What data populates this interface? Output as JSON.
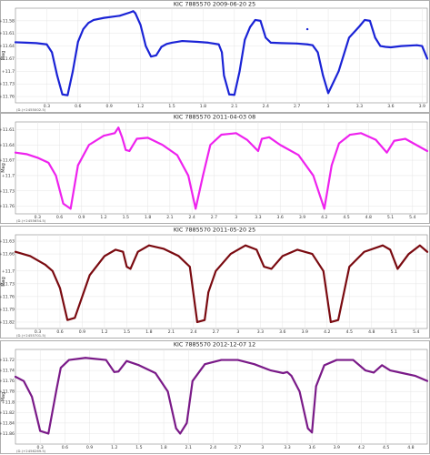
{
  "chart_data": [
    {
      "type": "line",
      "title": "KIC 7885570   2009-06-20   25",
      "ylabel": "Mag",
      "x_offset_note": "(D.)+2455002.5)",
      "color": "#1a23d6",
      "xlim": [
        0,
        3.95
      ],
      "ylim": [
        11.775,
        11.55
      ],
      "xticks": [
        0.3,
        0.6,
        0.9,
        1.2,
        1.5,
        1.8,
        2.1,
        2.4,
        2.7,
        3.0,
        3.3,
        3.6,
        3.9
      ],
      "yticks": [
        11.58,
        11.61,
        11.64,
        11.67,
        11.7,
        11.73,
        11.76
      ],
      "x": [
        0.0,
        0.1,
        0.2,
        0.3,
        0.35,
        0.4,
        0.45,
        0.5,
        0.55,
        0.6,
        0.65,
        0.7,
        0.75,
        0.85,
        1.0,
        1.1,
        1.13,
        1.15,
        1.2,
        1.25,
        1.3,
        1.35,
        1.4,
        1.45,
        1.5,
        1.6,
        1.75,
        1.85,
        1.95,
        1.98,
        2.0,
        2.05,
        2.1,
        2.15,
        2.2,
        2.25,
        2.3,
        2.35,
        2.4,
        2.45,
        2.55,
        2.7,
        2.8,
        2.85,
        2.9,
        2.95,
        3.0,
        3.1,
        3.2,
        3.3,
        3.35,
        3.4,
        3.45,
        3.5,
        3.55,
        3.6,
        3.7,
        3.85,
        3.9,
        3.95
      ],
      "y": [
        11.631,
        11.632,
        11.633,
        11.636,
        11.655,
        11.71,
        11.755,
        11.757,
        11.7,
        11.63,
        11.6,
        11.585,
        11.578,
        11.573,
        11.568,
        11.56,
        11.557,
        11.562,
        11.59,
        11.64,
        11.665,
        11.662,
        11.642,
        11.635,
        11.632,
        11.628,
        11.63,
        11.632,
        11.636,
        11.655,
        11.71,
        11.755,
        11.756,
        11.7,
        11.625,
        11.595,
        11.578,
        11.58,
        11.62,
        11.632,
        11.633,
        11.634,
        11.636,
        11.638,
        11.655,
        11.71,
        11.752,
        11.7,
        11.62,
        11.593,
        11.578,
        11.58,
        11.62,
        11.64,
        11.642,
        11.643,
        11.64,
        11.638,
        11.64,
        11.67
      ],
      "outlier": [
        2.8,
        11.6
      ]
    },
    {
      "type": "line",
      "title": "KIC 7885570   2011-04-03   08",
      "ylabel": "Mag",
      "x_offset_note": "(D.)+2455654.5)",
      "color": "#ee22ee",
      "xlim": [
        0,
        5.6
      ],
      "ylim": [
        11.775,
        11.595
      ],
      "xticks": [
        0.3,
        0.6,
        0.9,
        1.2,
        1.5,
        1.8,
        2.1,
        2.4,
        2.7,
        3.0,
        3.3,
        3.6,
        3.9,
        4.2,
        4.5,
        4.8,
        5.1,
        5.4
      ],
      "yticks": [
        11.61,
        11.64,
        11.67,
        11.7,
        11.73,
        11.76
      ],
      "x": [
        0.0,
        0.15,
        0.3,
        0.45,
        0.55,
        0.65,
        0.75,
        0.85,
        1.0,
        1.2,
        1.35,
        1.4,
        1.45,
        1.5,
        1.55,
        1.65,
        1.8,
        2.0,
        2.2,
        2.35,
        2.45,
        2.55,
        2.65,
        2.8,
        3.0,
        3.15,
        3.3,
        3.35,
        3.45,
        3.6,
        3.85,
        4.05,
        4.2,
        4.3,
        4.4,
        4.55,
        4.7,
        4.9,
        5.05,
        5.15,
        5.3,
        5.45,
        5.6
      ],
      "y": [
        11.655,
        11.658,
        11.665,
        11.675,
        11.7,
        11.755,
        11.765,
        11.68,
        11.64,
        11.622,
        11.617,
        11.606,
        11.625,
        11.65,
        11.652,
        11.628,
        11.626,
        11.64,
        11.66,
        11.7,
        11.765,
        11.7,
        11.64,
        11.62,
        11.617,
        11.63,
        11.652,
        11.628,
        11.625,
        11.64,
        11.66,
        11.7,
        11.765,
        11.68,
        11.637,
        11.62,
        11.617,
        11.63,
        11.655,
        11.632,
        11.628,
        11.64,
        11.652
      ]
    },
    {
      "type": "line",
      "title": "KIC 7885570   2011-05-20   25",
      "ylabel": "Mag",
      "x_offset_note": "(D.)+2455701.5)",
      "color": "#7a0a10",
      "xlim": [
        0,
        5.55
      ],
      "ylim": [
        11.835,
        11.615
      ],
      "xticks": [
        0.3,
        0.6,
        0.9,
        1.2,
        1.5,
        1.8,
        2.1,
        2.4,
        2.7,
        3.0,
        3.3,
        3.6,
        3.9,
        4.2,
        4.5,
        4.8,
        5.1,
        5.4
      ],
      "yticks": [
        11.63,
        11.66,
        11.7,
        11.73,
        11.76,
        11.79,
        11.82
      ],
      "x": [
        0.0,
        0.2,
        0.4,
        0.5,
        0.6,
        0.7,
        0.8,
        1.0,
        1.2,
        1.35,
        1.45,
        1.5,
        1.55,
        1.65,
        1.8,
        2.0,
        2.2,
        2.35,
        2.45,
        2.55,
        2.6,
        2.7,
        2.9,
        3.1,
        3.25,
        3.35,
        3.45,
        3.6,
        3.8,
        4.0,
        4.15,
        4.25,
        4.35,
        4.5,
        4.7,
        4.95,
        5.05,
        5.15,
        5.3,
        5.45,
        5.55
      ],
      "y": [
        11.655,
        11.665,
        11.685,
        11.7,
        11.74,
        11.815,
        11.81,
        11.71,
        11.665,
        11.65,
        11.655,
        11.69,
        11.695,
        11.655,
        11.64,
        11.648,
        11.665,
        11.69,
        11.82,
        11.815,
        11.75,
        11.7,
        11.66,
        11.64,
        11.65,
        11.69,
        11.695,
        11.665,
        11.65,
        11.66,
        11.7,
        11.82,
        11.815,
        11.69,
        11.655,
        11.64,
        11.65,
        11.695,
        11.66,
        11.64,
        11.655
      ]
    },
    {
      "type": "line",
      "title": "KIC 7885570  2012-12-07   12",
      "ylabel": "Mag",
      "x_offset_note": "(D.)+2456269.5)",
      "color": "#7a1a88",
      "xlim": [
        0,
        5.0
      ],
      "ylim": [
        11.88,
        11.7
      ],
      "xticks": [
        0.3,
        0.6,
        0.9,
        1.2,
        1.5,
        1.8,
        2.1,
        2.4,
        2.7,
        3.0,
        3.3,
        3.6,
        3.9,
        4.2,
        4.5,
        4.8
      ],
      "yticks": [
        11.72,
        11.74,
        11.76,
        11.78,
        11.8,
        11.82,
        11.84,
        11.86
      ],
      "x": [
        0.0,
        0.1,
        0.2,
        0.3,
        0.4,
        0.5,
        0.55,
        0.65,
        0.85,
        1.1,
        1.2,
        1.25,
        1.35,
        1.5,
        1.7,
        1.85,
        1.95,
        2.0,
        2.08,
        2.15,
        2.3,
        2.5,
        2.7,
        2.9,
        3.1,
        3.25,
        3.3,
        3.35,
        3.45,
        3.55,
        3.6,
        3.65,
        3.75,
        3.9,
        4.1,
        4.25,
        4.35,
        4.45,
        4.55,
        4.7,
        4.85,
        5.0
      ],
      "y": [
        11.752,
        11.76,
        11.79,
        11.855,
        11.86,
        11.775,
        11.735,
        11.72,
        11.716,
        11.72,
        11.743,
        11.742,
        11.722,
        11.73,
        11.745,
        11.78,
        11.85,
        11.86,
        11.84,
        11.76,
        11.728,
        11.72,
        11.72,
        11.728,
        11.74,
        11.745,
        11.743,
        11.75,
        11.78,
        11.85,
        11.858,
        11.77,
        11.73,
        11.72,
        11.72,
        11.74,
        11.744,
        11.73,
        11.74,
        11.745,
        11.75,
        11.76
      ]
    }
  ]
}
